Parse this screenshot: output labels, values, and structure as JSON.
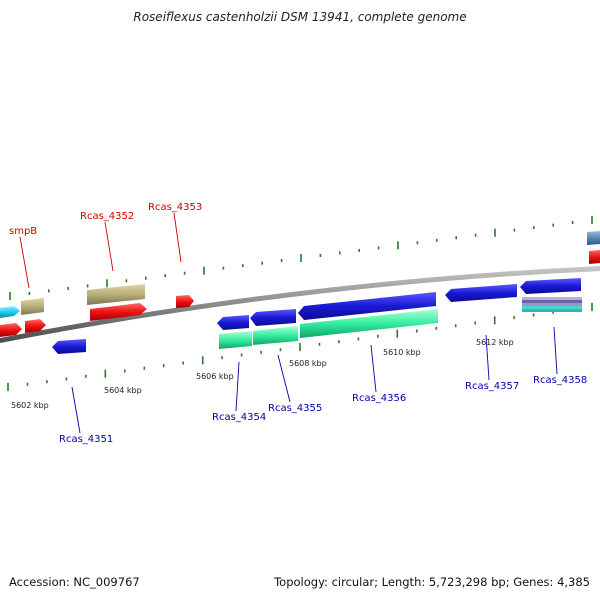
{
  "title": "Roseiflexus castenholzii DSM 13941, complete genome",
  "footer": {
    "accession": "Accession: NC_009767",
    "summary": "Topology: circular; Length: 5,723,298 bp; Genes: 4,385"
  },
  "colors": {
    "backbone": "#8a8a8a",
    "tick": "#2a7a2a",
    "forward_label": "#cc0000",
    "reverse_label": "#0000aa",
    "blue": "#1a1ad6",
    "red": "#ee1111",
    "khaki": "#b8ae78",
    "cyan": "#22ccee",
    "mint": "#33eea0",
    "steel": "#5a86b8",
    "purple": "#7a72b0"
  },
  "scale_labels": [
    "5602 kbp",
    "5604 kbp",
    "5606 kbp",
    "5608 kbp",
    "5610 kbp",
    "5612 kbp"
  ],
  "forward_gene_labels": [
    "smpB",
    "Rcas_4352",
    "Rcas_4353"
  ],
  "reverse_gene_labels": [
    "Rcas_4351",
    "Rcas_4354",
    "Rcas_4355",
    "Rcas_4356",
    "Rcas_4357",
    "Rcas_4358"
  ]
}
